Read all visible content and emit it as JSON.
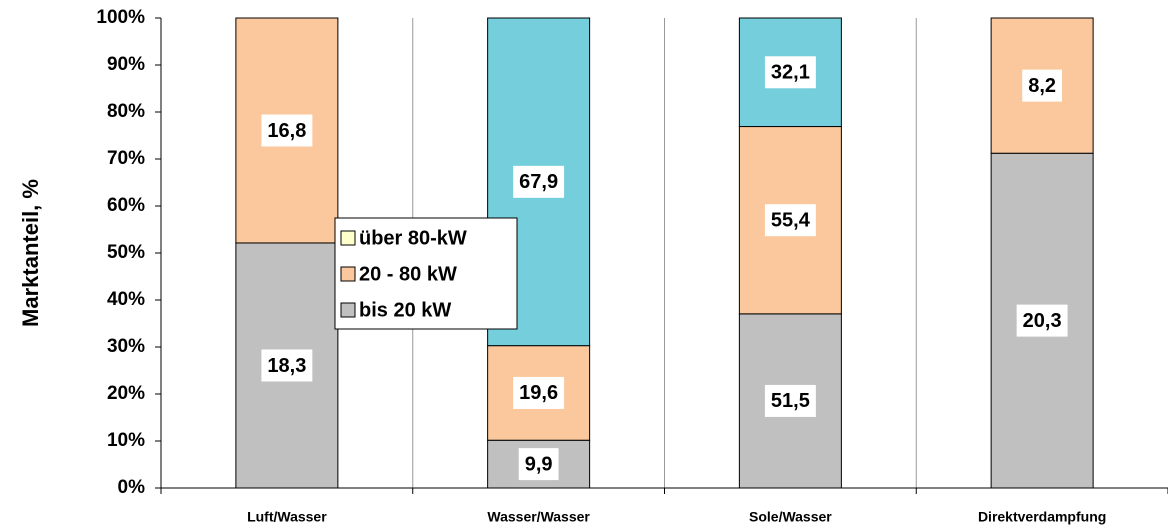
{
  "chart_data": {
    "type": "bar",
    "stack": "percent",
    "y_label": "Marktanteil, %",
    "categories": [
      "Luft/Wasser",
      "Wasser/Wasser",
      "Sole/Wasser",
      "Direktverdampfung"
    ],
    "series": [
      {
        "name": "bis 20 kW",
        "color": "#c0c0c0",
        "values": [
          18.3,
          9.9,
          51.5,
          20.3
        ],
        "value_labels": [
          "18,3",
          "9,9",
          "51,5",
          "20,3"
        ]
      },
      {
        "name": "20 - 80 kW",
        "color": "#fac89c",
        "values": [
          16.8,
          19.6,
          55.4,
          8.2
        ],
        "value_labels": [
          "16,8",
          "19,6",
          "55,4",
          "8,2"
        ]
      },
      {
        "name": "über 80-kW",
        "color": "#74cedc",
        "legend_color": "#ffffcc",
        "values": [
          null,
          67.9,
          32.1,
          null
        ],
        "value_labels": [
          null,
          "67,9",
          "32,1",
          null
        ]
      }
    ],
    "ylim": [
      0,
      100
    ],
    "yticks": [
      {
        "value": 0,
        "label": "0%"
      },
      {
        "value": 10,
        "label": "10%"
      },
      {
        "value": 20,
        "label": "20%"
      },
      {
        "value": 30,
        "label": "30%"
      },
      {
        "value": 40,
        "label": "40%"
      },
      {
        "value": 50,
        "label": "50%"
      },
      {
        "value": 60,
        "label": "60%"
      },
      {
        "value": 70,
        "label": "70%"
      },
      {
        "value": 80,
        "label": "80%"
      },
      {
        "value": 90,
        "label": "90%"
      },
      {
        "value": 100,
        "label": "100%"
      }
    ],
    "grid": true
  }
}
